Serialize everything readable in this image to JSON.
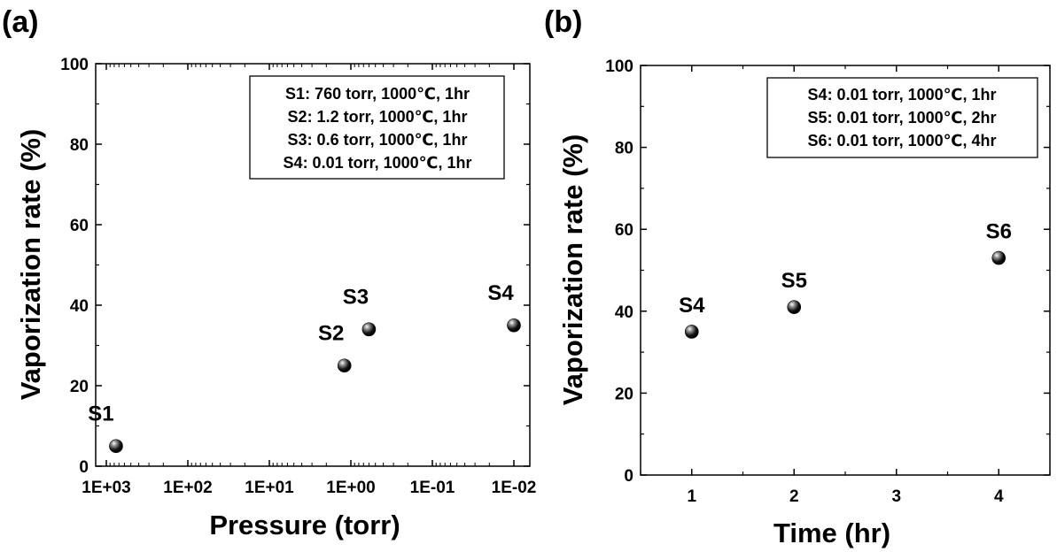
{
  "panels": [
    {
      "panel_label": "(a)",
      "legend_lines": [
        "S1: 760 torr, 1000℃, 1hr",
        "S2: 1.2 torr, 1000℃, 1hr",
        "S3: 0.6 torr, 1000℃, 1hr",
        "S4: 0.01 torr, 1000℃, 1hr"
      ]
    },
    {
      "panel_label": "(b)",
      "legend_lines": [
        "S4: 0.01 torr, 1000℃, 1hr",
        "S5: 0.01 torr, 1000℃, 2hr",
        "S6: 0.01 torr, 1000℃, 4hr"
      ]
    }
  ],
  "chart_data": [
    {
      "type": "scatter",
      "xlabel": "Pressure (torr)",
      "ylabel": "Vaporization rate (%)",
      "x_scale": "log",
      "x_axis_reversed": true,
      "xlim": [
        1000,
        0.01
      ],
      "ylim": [
        0,
        100
      ],
      "xticks": [
        "1E+03",
        "1E+02",
        "1E+01",
        "1E+00",
        "1E-01",
        "1E-02"
      ],
      "yticks": [
        0,
        20,
        40,
        60,
        80,
        100
      ],
      "grid": false,
      "legend_position": "top-right",
      "points": [
        {
          "label": "S1",
          "x": 760,
          "y": 5
        },
        {
          "label": "S2",
          "x": 1.2,
          "y": 25
        },
        {
          "label": "S3",
          "x": 0.6,
          "y": 34
        },
        {
          "label": "S4",
          "x": 0.01,
          "y": 35
        }
      ]
    },
    {
      "type": "scatter",
      "xlabel": "Time (hr)",
      "ylabel": "Vaporization rate (%)",
      "xlim": [
        0.5,
        4.5
      ],
      "ylim": [
        0,
        100
      ],
      "xticks": [
        "1",
        "2",
        "3",
        "4"
      ],
      "yticks": [
        0,
        20,
        40,
        60,
        80,
        100
      ],
      "grid": false,
      "legend_position": "top-right",
      "points": [
        {
          "label": "S4",
          "x": 1,
          "y": 35
        },
        {
          "label": "S5",
          "x": 2,
          "y": 41
        },
        {
          "label": "S6",
          "x": 4,
          "y": 53
        }
      ]
    }
  ]
}
